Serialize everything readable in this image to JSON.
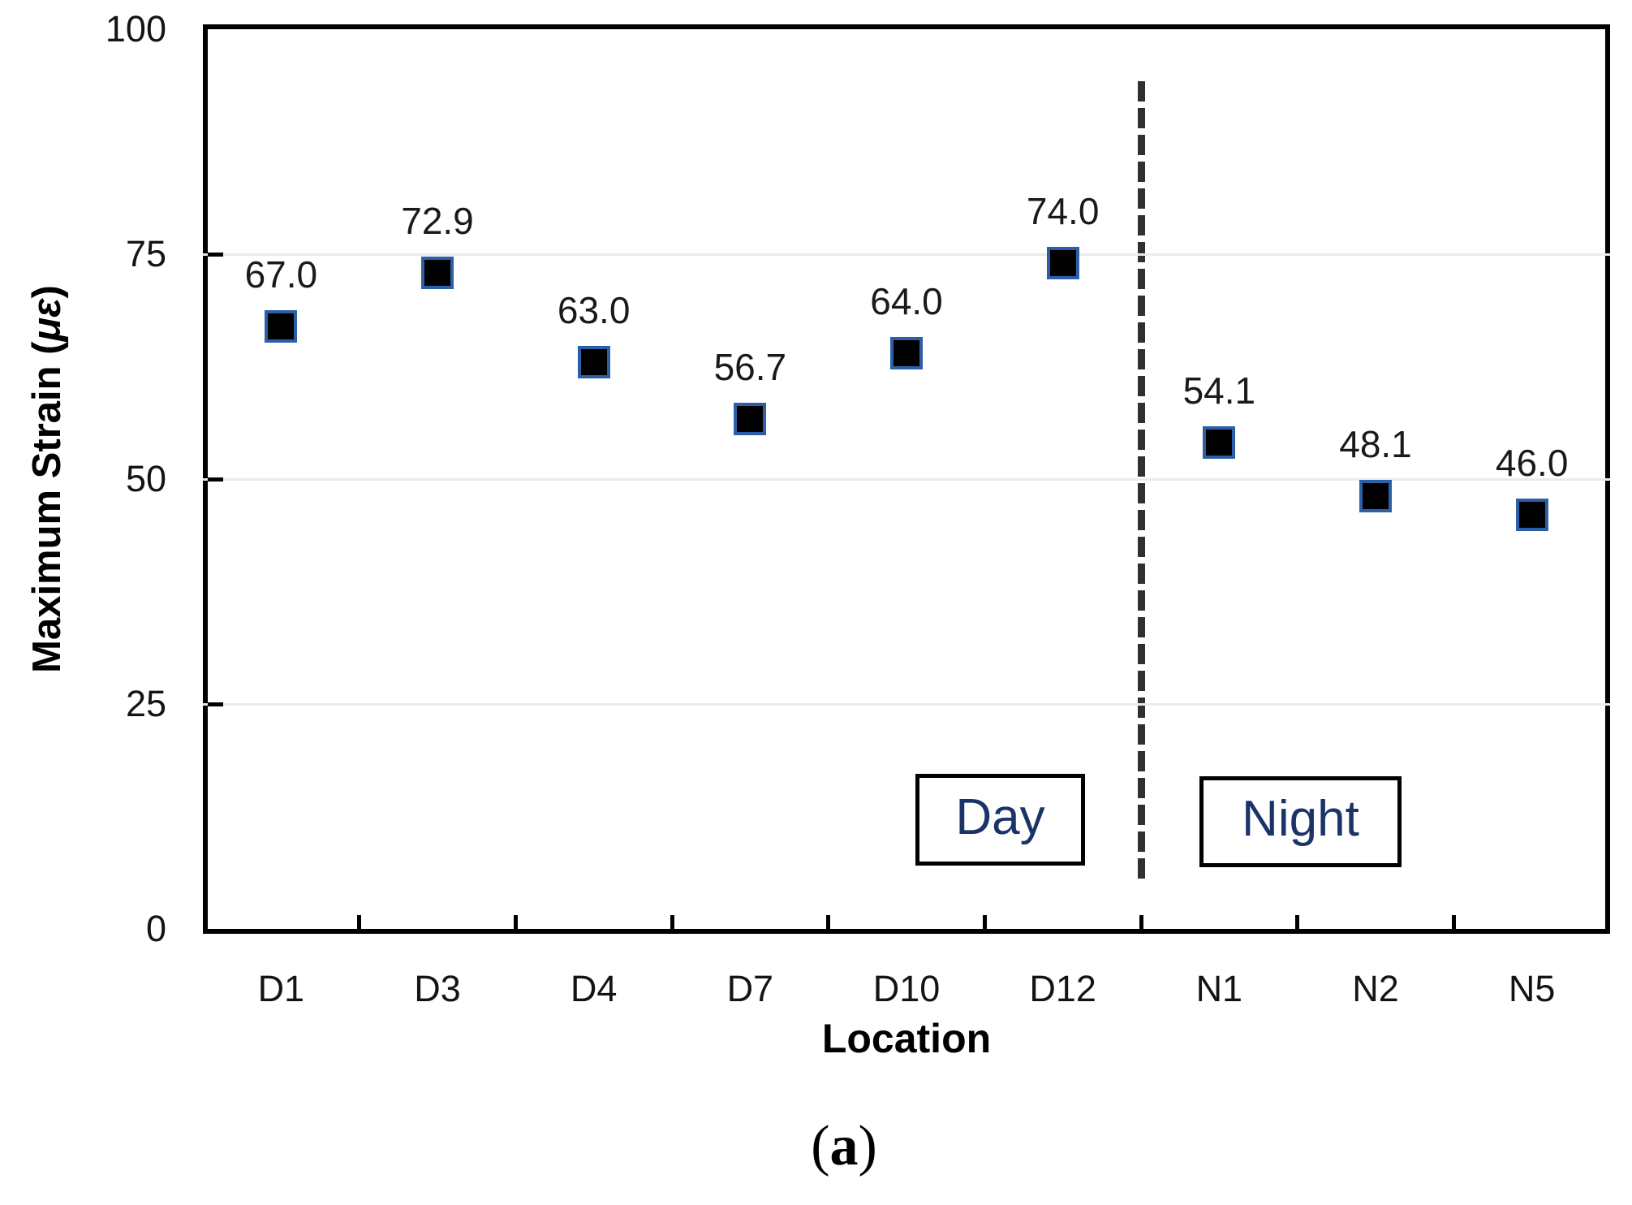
{
  "colors": {
    "marker_fill": "#000000",
    "marker_border": "#2d5fa6",
    "gridline": "#ebebeb",
    "axis": "#000000",
    "group_label_text": "#1b3468",
    "data_label_text": "#1a1a1a"
  },
  "chart_data": {
    "type": "scatter",
    "title": "",
    "xlabel": "Location",
    "ylabel": "Maximum Strain (με)",
    "ylabel_prefix": "Maximum Strain (",
    "ylabel_italic": "με",
    "ylabel_suffix": ")",
    "ylim": [
      0,
      100
    ],
    "yticks": [
      0,
      25,
      50,
      75,
      100
    ],
    "ytick_labels": [
      "0",
      "25",
      "50",
      "75",
      "100"
    ],
    "gridline_values": [
      25,
      50,
      75
    ],
    "grid": "horizontal",
    "legend_position": "none",
    "categories": [
      "D1",
      "D3",
      "D4",
      "D7",
      "D10",
      "D12",
      "N1",
      "N2",
      "N5"
    ],
    "series": [
      {
        "name": "Maximum Strain",
        "values": [
          67.0,
          72.9,
          63.0,
          56.7,
          64.0,
          74.0,
          54.1,
          48.1,
          46.0
        ],
        "point_labels": [
          "67.0",
          "72.9",
          "63.0",
          "56.7",
          "64.0",
          "74.0",
          "54.1",
          "48.1",
          "46.0"
        ]
      }
    ],
    "divider_after_category": "D12",
    "group_boxes": [
      {
        "label": "Day"
      },
      {
        "label": "Night"
      }
    ]
  },
  "caption": {
    "open": "(",
    "letter": "a",
    "close": ")"
  }
}
